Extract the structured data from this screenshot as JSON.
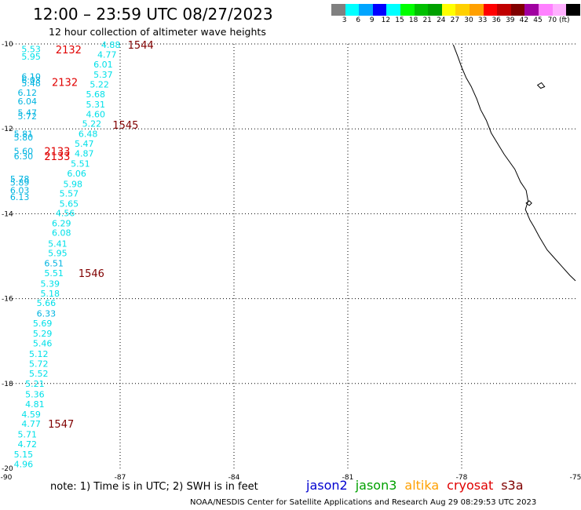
{
  "header": {
    "title": "12:00 – 23:59 UTC 08/27/2023",
    "subtitle": "12 hour collection of altimeter wave heights"
  },
  "legend": {
    "colors": [
      "#808080",
      "#00ffff",
      "#00a5ff",
      "#0000ff",
      "#00ffff",
      "#00ff00",
      "#00c000",
      "#00a000",
      "#ffff00",
      "#ffd000",
      "#ffa000",
      "#ff0000",
      "#c00000",
      "#800000",
      "#a000a0",
      "#ff80ff",
      "#ffb0ff",
      "#000000"
    ],
    "labels": [
      "3",
      "6",
      "9",
      "12",
      "15",
      "18",
      "21",
      "24",
      "27",
      "30",
      "33",
      "36",
      "39",
      "42",
      "45",
      "70 (ft)"
    ],
    "unit": "(ft)"
  },
  "map": {
    "lon_ticks": [
      "-90",
      "-87",
      "-84",
      "-81",
      "-78",
      "-75"
    ],
    "lat_ticks": [
      "-10",
      "-12",
      "-14",
      "-16",
      "-18",
      "-20"
    ],
    "passes": [
      {
        "label": "2132",
        "lon": -88.7,
        "lat": -10.13,
        "color": "#e00000"
      },
      {
        "label": "2132",
        "lon": -88.8,
        "lat": -10.9,
        "color": "#e00000"
      },
      {
        "label": "2133",
        "lon": -89.0,
        "lat": -12.52,
        "color": "#e00000"
      },
      {
        "label": "2133",
        "lon": -89.0,
        "lat": -12.64,
        "color": "#e00000"
      },
      {
        "label": "1544",
        "lon": -86.8,
        "lat": -10.02,
        "color": "#800000"
      },
      {
        "label": "1545",
        "lon": -87.2,
        "lat": -11.9,
        "color": "#800000"
      },
      {
        "label": "1546",
        "lon": -88.1,
        "lat": -15.4,
        "color": "#800000"
      },
      {
        "label": "1547",
        "lon": -88.9,
        "lat": -18.95,
        "color": "#800000"
      }
    ],
    "wave_heights": [
      {
        "v": "5.53",
        "lon": -89.6,
        "lat": -10.12,
        "c": "#00e0e8"
      },
      {
        "v": "5.95",
        "lon": -89.6,
        "lat": -10.3,
        "c": "#00e0e8"
      },
      {
        "v": "4.88",
        "lon": -87.5,
        "lat": -10.02,
        "c": "#00e0e8"
      },
      {
        "v": "4.77",
        "lon": -87.6,
        "lat": -10.25,
        "c": "#00e0e8"
      },
      {
        "v": "6.01",
        "lon": -87.7,
        "lat": -10.48,
        "c": "#00e0e8"
      },
      {
        "v": "5.37",
        "lon": -87.7,
        "lat": -10.72,
        "c": "#00e0e8"
      },
      {
        "v": "6.10",
        "lon": -89.6,
        "lat": -10.77,
        "c": "#00b4e0"
      },
      {
        "v": "6.03",
        "lon": -89.6,
        "lat": -10.85,
        "c": "#00b4e0"
      },
      {
        "v": "5.48",
        "lon": -89.6,
        "lat": -10.92,
        "c": "#00b4e0"
      },
      {
        "v": "5.22",
        "lon": -87.8,
        "lat": -10.95,
        "c": "#00e0e8"
      },
      {
        "v": "6.12",
        "lon": -89.7,
        "lat": -11.15,
        "c": "#00b4e0"
      },
      {
        "v": "5.68",
        "lon": -87.9,
        "lat": -11.18,
        "c": "#00e0e8"
      },
      {
        "v": "6.04",
        "lon": -89.7,
        "lat": -11.35,
        "c": "#00b4e0"
      },
      {
        "v": "5.31",
        "lon": -87.9,
        "lat": -11.42,
        "c": "#00e0e8"
      },
      {
        "v": "5.47",
        "lon": -89.7,
        "lat": -11.62,
        "c": "#00b4e0"
      },
      {
        "v": "4.60",
        "lon": -87.9,
        "lat": -11.65,
        "c": "#00e0e8"
      },
      {
        "v": "5.72",
        "lon": -89.7,
        "lat": -11.7,
        "c": "#00b4e0"
      },
      {
        "v": "5.22",
        "lon": -88.0,
        "lat": -11.88,
        "c": "#00e0e8"
      },
      {
        "v": "6.48",
        "lon": -88.1,
        "lat": -12.12,
        "c": "#00e0e8"
      },
      {
        "v": "5.81",
        "lon": -89.8,
        "lat": -12.12,
        "c": "#00b4e0"
      },
      {
        "v": "5.80",
        "lon": -89.8,
        "lat": -12.2,
        "c": "#00b4e0"
      },
      {
        "v": "5.47",
        "lon": -88.2,
        "lat": -12.35,
        "c": "#00e0e8"
      },
      {
        "v": "5.60",
        "lon": -89.8,
        "lat": -12.52,
        "c": "#00b4e0"
      },
      {
        "v": "4.87",
        "lon": -88.2,
        "lat": -12.58,
        "c": "#00e0e8"
      },
      {
        "v": "6.30",
        "lon": -89.8,
        "lat": -12.64,
        "c": "#00b4e0"
      },
      {
        "v": "5.51",
        "lon": -88.3,
        "lat": -12.82,
        "c": "#00e0e8"
      },
      {
        "v": "6.06",
        "lon": -88.4,
        "lat": -13.05,
        "c": "#00e0e8"
      },
      {
        "v": "5.78",
        "lon": -89.9,
        "lat": -13.18,
        "c": "#00b4e0"
      },
      {
        "v": "5.89",
        "lon": -89.9,
        "lat": -13.26,
        "c": "#00b4e0"
      },
      {
        "v": "5.98",
        "lon": -88.5,
        "lat": -13.3,
        "c": "#00e0e8"
      },
      {
        "v": "6.03",
        "lon": -89.9,
        "lat": -13.45,
        "c": "#00b4e0"
      },
      {
        "v": "5.57",
        "lon": -88.6,
        "lat": -13.52,
        "c": "#00e0e8"
      },
      {
        "v": "6.13",
        "lon": -89.9,
        "lat": -13.6,
        "c": "#00b4e0"
      },
      {
        "v": "5.65",
        "lon": -88.6,
        "lat": -13.76,
        "c": "#00e0e8"
      },
      {
        "v": "4.56",
        "lon": -88.7,
        "lat": -13.98,
        "c": "#00e0e8"
      },
      {
        "v": "6.29",
        "lon": -88.8,
        "lat": -14.22,
        "c": "#00e0e8"
      },
      {
        "v": "6.08",
        "lon": -88.8,
        "lat": -14.45,
        "c": "#00e0e8"
      },
      {
        "v": "5.41",
        "lon": -88.9,
        "lat": -14.7,
        "c": "#00e0e8"
      },
      {
        "v": "5.95",
        "lon": -88.9,
        "lat": -14.93,
        "c": "#00e0e8"
      },
      {
        "v": "6.51",
        "lon": -89.0,
        "lat": -15.17,
        "c": "#00b4e0"
      },
      {
        "v": "5.51",
        "lon": -89.0,
        "lat": -15.4,
        "c": "#00e0e8"
      },
      {
        "v": "5.39",
        "lon": -89.1,
        "lat": -15.65,
        "c": "#00e0e8"
      },
      {
        "v": "5.18",
        "lon": -89.1,
        "lat": -15.88,
        "c": "#00e0e8"
      },
      {
        "v": "5.66",
        "lon": -89.2,
        "lat": -16.1,
        "c": "#00e0e8"
      },
      {
        "v": "6.33",
        "lon": -89.2,
        "lat": -16.35,
        "c": "#00b4e0"
      },
      {
        "v": "5.69",
        "lon": -89.3,
        "lat": -16.58,
        "c": "#00e0e8"
      },
      {
        "v": "5.29",
        "lon": -89.3,
        "lat": -16.82,
        "c": "#00e0e8"
      },
      {
        "v": "5.46",
        "lon": -89.3,
        "lat": -17.05,
        "c": "#00e0e8"
      },
      {
        "v": "5.12",
        "lon": -89.4,
        "lat": -17.3,
        "c": "#00e0e8"
      },
      {
        "v": "5.72",
        "lon": -89.4,
        "lat": -17.53,
        "c": "#00e0e8"
      },
      {
        "v": "5.52",
        "lon": -89.4,
        "lat": -17.76,
        "c": "#00e0e8"
      },
      {
        "v": "5.21",
        "lon": -89.5,
        "lat": -18.0,
        "c": "#00e0e8"
      },
      {
        "v": "5.36",
        "lon": -89.5,
        "lat": -18.25,
        "c": "#00e0e8"
      },
      {
        "v": "4.81",
        "lon": -89.5,
        "lat": -18.48,
        "c": "#00e0e8"
      },
      {
        "v": "4.59",
        "lon": -89.6,
        "lat": -18.72,
        "c": "#00e0e8"
      },
      {
        "v": "4.77",
        "lon": -89.6,
        "lat": -18.95,
        "c": "#00e0e8"
      },
      {
        "v": "5.71",
        "lon": -89.7,
        "lat": -19.2,
        "c": "#00e0e8"
      },
      {
        "v": "4.72",
        "lon": -89.7,
        "lat": -19.43,
        "c": "#00e0e8"
      },
      {
        "v": "5.15",
        "lon": -89.8,
        "lat": -19.67,
        "c": "#00e0e8"
      },
      {
        "v": "4.96",
        "lon": -89.8,
        "lat": -19.9,
        "c": "#00e0e8"
      }
    ]
  },
  "footer": {
    "note": "note: 1) Time is in UTC; 2) SWH is in feet",
    "satellites": [
      {
        "name": "jason2",
        "color": "#0000d0"
      },
      {
        "name": "jason3",
        "color": "#00a000"
      },
      {
        "name": "altika",
        "color": "#ffa000"
      },
      {
        "name": "cryosat",
        "color": "#e00000"
      },
      {
        "name": "s3a",
        "color": "#800000"
      }
    ],
    "credit": "NOAA/NESDIS Center for Satellite Applications and Research    Aug 29 08:29:53 UTC 2023"
  }
}
